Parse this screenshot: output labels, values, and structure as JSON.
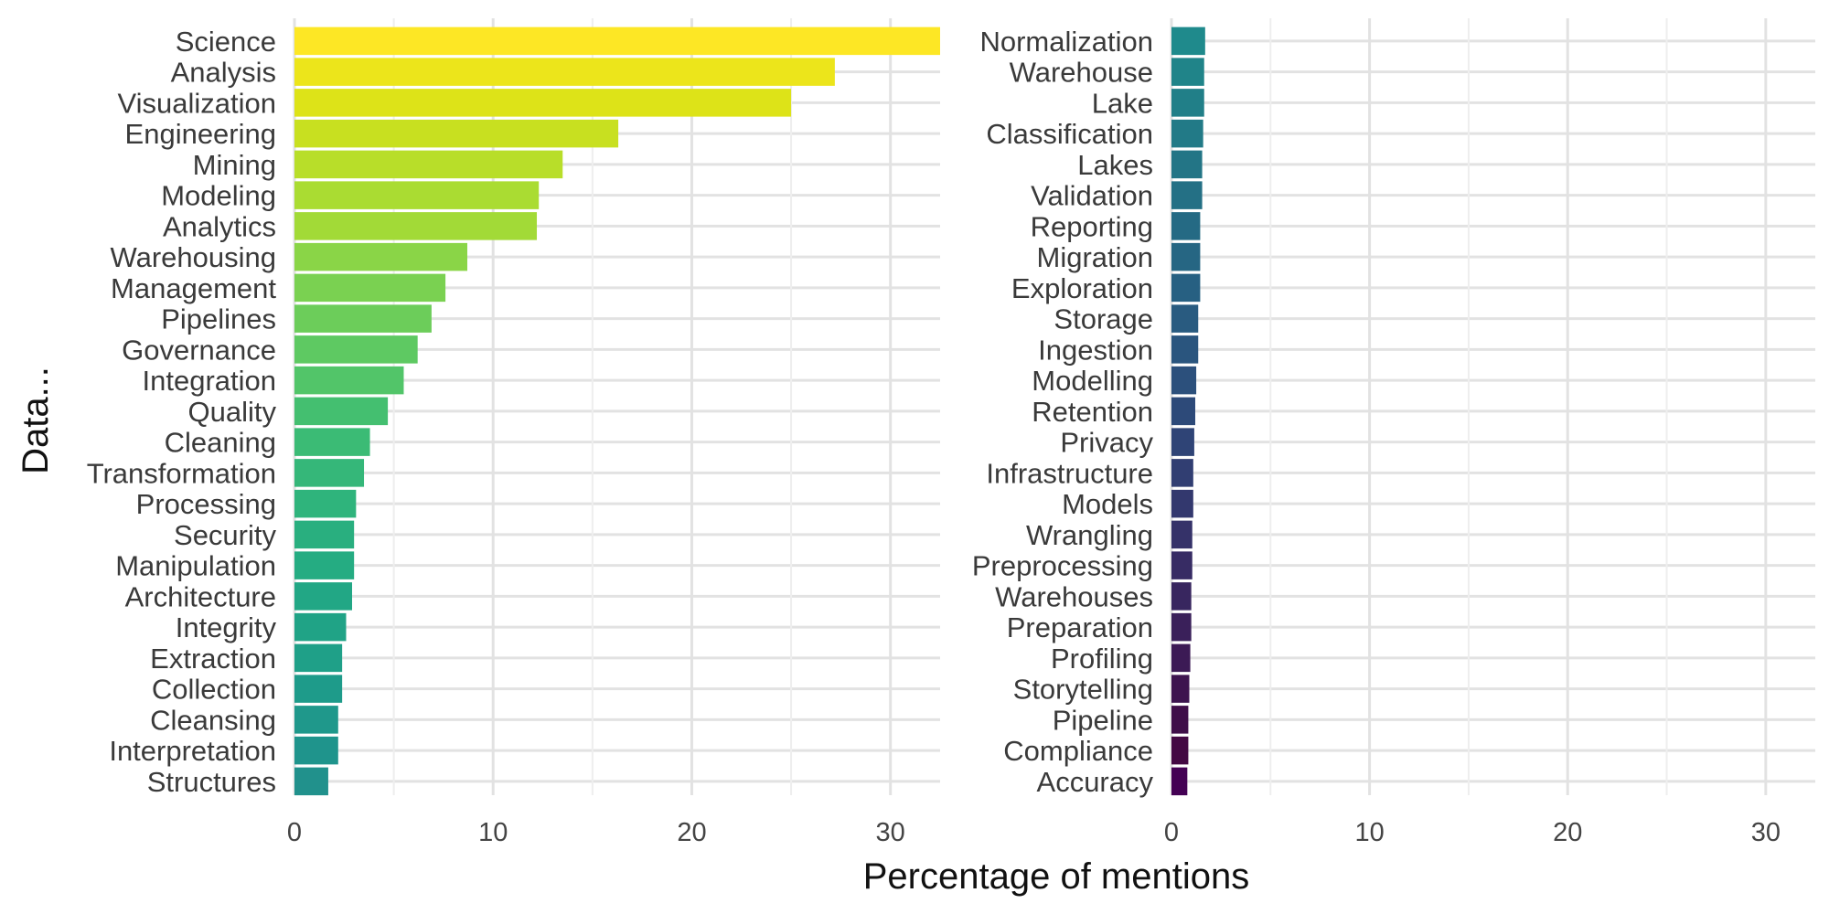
{
  "chart_data": {
    "type": "bar",
    "orientation": "horizontal",
    "layout": "two-panel",
    "xlabel": "Percentage of mentions",
    "ylabel": "Data...",
    "xlim": [
      0,
      32.5
    ],
    "xticks": [
      0,
      10,
      20,
      30
    ],
    "grid": true,
    "legend": "none",
    "color_scale": "viridis",
    "panels": [
      {
        "categories": [
          "Science",
          "Analysis",
          "Visualization",
          "Engineering",
          "Mining",
          "Modeling",
          "Analytics",
          "Warehousing",
          "Management",
          "Pipelines",
          "Governance",
          "Integration",
          "Quality",
          "Cleaning",
          "Transformation",
          "Processing",
          "Security",
          "Manipulation",
          "Architecture",
          "Integrity",
          "Extraction",
          "Collection",
          "Cleansing",
          "Interpretation",
          "Structures"
        ],
        "values": [
          32.5,
          27.2,
          25.0,
          16.3,
          13.5,
          12.3,
          12.2,
          8.7,
          7.6,
          6.9,
          6.2,
          5.5,
          4.7,
          3.8,
          3.5,
          3.1,
          3.0,
          3.0,
          2.9,
          2.6,
          2.4,
          2.4,
          2.2,
          2.2,
          1.7
        ],
        "colors": [
          "#fde725",
          "#ece51b",
          "#dde318",
          "#c8e020",
          "#b8de29",
          "#aadc32",
          "#a2da37",
          "#8ad547",
          "#7ad151",
          "#6ccd5a",
          "#5ec962",
          "#52c569",
          "#44bf70",
          "#3bbb75",
          "#35b779",
          "#2fb47c",
          "#29af7f",
          "#25ac82",
          "#22a785",
          "#20a386",
          "#1fa088",
          "#1e9b8a",
          "#1f988b",
          "#1f948c",
          "#21918c"
        ]
      },
      {
        "categories": [
          "Normalization",
          "Warehouse",
          "Lake",
          "Classification",
          "Lakes",
          "Validation",
          "Reporting",
          "Migration",
          "Exploration",
          "Storage",
          "Ingestion",
          "Modelling",
          "Retention",
          "Privacy",
          "Infrastructure",
          "Models",
          "Wrangling",
          "Preprocessing",
          "Warehouses",
          "Preparation",
          "Profiling",
          "Storytelling",
          "Pipeline",
          "Compliance",
          "Accuracy"
        ],
        "values": [
          1.7,
          1.65,
          1.65,
          1.6,
          1.55,
          1.55,
          1.45,
          1.45,
          1.45,
          1.35,
          1.35,
          1.25,
          1.2,
          1.15,
          1.1,
          1.1,
          1.05,
          1.05,
          1.0,
          1.0,
          0.95,
          0.9,
          0.85,
          0.85,
          0.8
        ],
        "colors": [
          "#1f8a8c",
          "#208489",
          "#217f88",
          "#227a87",
          "#237586",
          "#247085",
          "#256a84",
          "#266683",
          "#276082",
          "#295b80",
          "#2a557e",
          "#2c507c",
          "#2d4a79",
          "#2f4476",
          "#313e72",
          "#33386e",
          "#353269",
          "#372c64",
          "#38265f",
          "#3a205a",
          "#3c1a55",
          "#3d144f",
          "#3f0e49",
          "#430843",
          "#440154"
        ]
      }
    ]
  }
}
